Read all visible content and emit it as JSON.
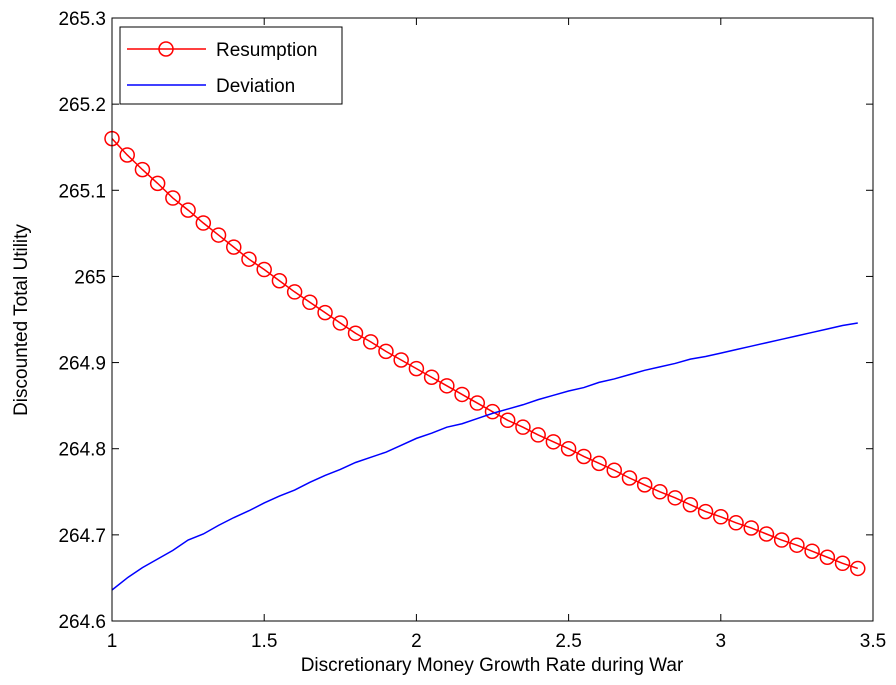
{
  "chart_data": {
    "type": "line",
    "title": "",
    "xlabel": "Discretionary Money Growth Rate during War",
    "ylabel": "Discounted Total Utility",
    "xlim": [
      1,
      3.5
    ],
    "ylim": [
      264.6,
      265.3
    ],
    "x_ticks": [
      "1",
      "1.5",
      "2",
      "2.5",
      "3",
      "3.5"
    ],
    "y_ticks": [
      "264.6",
      "264.7",
      "264.8",
      "264.9",
      "265",
      "265.1",
      "265.2",
      "265.3"
    ],
    "grid": false,
    "legend_position": "top-left",
    "series": [
      {
        "name": "Resumption",
        "color": "#ff0000",
        "marker": "circle",
        "x": [
          1.0,
          1.05,
          1.1,
          1.15,
          1.2,
          1.25,
          1.3,
          1.35,
          1.4,
          1.45,
          1.5,
          1.55,
          1.6,
          1.65,
          1.7,
          1.75,
          1.8,
          1.85,
          1.9,
          1.95,
          2.0,
          2.05,
          2.1,
          2.15,
          2.2,
          2.25,
          2.3,
          2.35,
          2.4,
          2.45,
          2.5,
          2.55,
          2.6,
          2.65,
          2.7,
          2.75,
          2.8,
          2.85,
          2.9,
          2.95,
          3.0,
          3.05,
          3.1,
          3.15,
          3.2,
          3.25,
          3.3,
          3.35,
          3.4,
          3.45
        ],
        "values": [
          265.16,
          265.141,
          265.124,
          265.108,
          265.091,
          265.077,
          265.062,
          265.048,
          265.034,
          265.02,
          265.008,
          264.995,
          264.982,
          264.97,
          264.958,
          264.946,
          264.934,
          264.924,
          264.913,
          264.903,
          264.893,
          264.883,
          264.873,
          264.863,
          264.853,
          264.843,
          264.833,
          264.825,
          264.816,
          264.808,
          264.8,
          264.791,
          264.783,
          264.775,
          264.766,
          264.758,
          264.75,
          264.743,
          264.735,
          264.727,
          264.721,
          264.714,
          264.708,
          264.701,
          264.694,
          264.688,
          264.681,
          264.674,
          264.667,
          264.661
        ]
      },
      {
        "name": "Deviation",
        "color": "#0000ff",
        "marker": "none",
        "x": [
          1.0,
          1.05,
          1.1,
          1.15,
          1.2,
          1.25,
          1.3,
          1.35,
          1.4,
          1.45,
          1.5,
          1.55,
          1.6,
          1.65,
          1.7,
          1.75,
          1.8,
          1.85,
          1.9,
          1.95,
          2.0,
          2.05,
          2.1,
          2.15,
          2.2,
          2.25,
          2.3,
          2.35,
          2.4,
          2.45,
          2.5,
          2.55,
          2.6,
          2.65,
          2.7,
          2.75,
          2.8,
          2.85,
          2.9,
          2.95,
          3.0,
          3.05,
          3.1,
          3.15,
          3.2,
          3.25,
          3.3,
          3.35,
          3.4,
          3.45
        ],
        "values": [
          264.636,
          264.65,
          264.662,
          264.672,
          264.682,
          264.694,
          264.701,
          264.711,
          264.72,
          264.728,
          264.737,
          264.745,
          264.752,
          264.761,
          264.769,
          264.776,
          264.784,
          264.79,
          264.796,
          264.804,
          264.812,
          264.818,
          264.825,
          264.829,
          264.835,
          264.841,
          264.846,
          264.851,
          264.857,
          264.862,
          264.867,
          264.871,
          264.877,
          264.881,
          264.886,
          264.891,
          264.895,
          264.899,
          264.904,
          264.907,
          264.911,
          264.915,
          264.919,
          264.923,
          264.927,
          264.931,
          264.935,
          264.939,
          264.943,
          264.946
        ]
      }
    ]
  }
}
